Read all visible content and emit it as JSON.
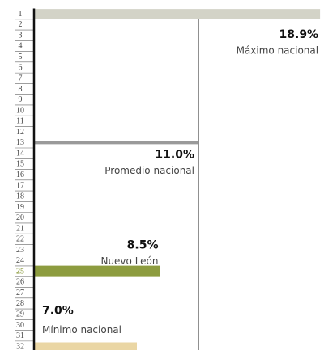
{
  "chart_data": {
    "type": "bar",
    "categories": [
      "1",
      "2",
      "3",
      "4",
      "5",
      "6",
      "7",
      "8",
      "9",
      "10",
      "11",
      "12",
      "13",
      "14",
      "15",
      "16",
      "17",
      "18",
      "19",
      "20",
      "21",
      "22",
      "23",
      "24",
      "25",
      "26",
      "27",
      "28",
      "29",
      "30",
      "31",
      "32"
    ],
    "values": [
      18.9,
      null,
      null,
      null,
      null,
      null,
      null,
      null,
      null,
      null,
      null,
      null,
      11.0,
      null,
      null,
      null,
      null,
      null,
      null,
      null,
      null,
      null,
      null,
      null,
      8.5,
      null,
      null,
      null,
      null,
      null,
      null,
      7.0
    ],
    "value_labels": [
      "18.9%",
      null,
      null,
      null,
      null,
      null,
      null,
      null,
      null,
      null,
      null,
      null,
      "11.0%",
      null,
      null,
      null,
      null,
      null,
      null,
      null,
      null,
      null,
      null,
      null,
      "8.5%",
      null,
      null,
      null,
      null,
      null,
      null,
      "7.0%"
    ],
    "bar_notes": [
      "Máximo nacional",
      null,
      null,
      null,
      null,
      null,
      null,
      null,
      null,
      null,
      null,
      null,
      "Promedio nacional",
      null,
      null,
      null,
      null,
      null,
      null,
      null,
      null,
      null,
      null,
      null,
      "Nuevo León",
      null,
      null,
      null,
      null,
      null,
      null,
      "Mínimo nacional"
    ],
    "colors": [
      "#d3d3c7",
      null,
      null,
      null,
      null,
      null,
      null,
      null,
      null,
      null,
      null,
      null,
      "#9a9a9a",
      null,
      null,
      null,
      null,
      null,
      null,
      null,
      null,
      null,
      null,
      null,
      "#8d9c3f",
      null,
      null,
      null,
      null,
      null,
      null,
      "#ead6a4"
    ]
  }
}
